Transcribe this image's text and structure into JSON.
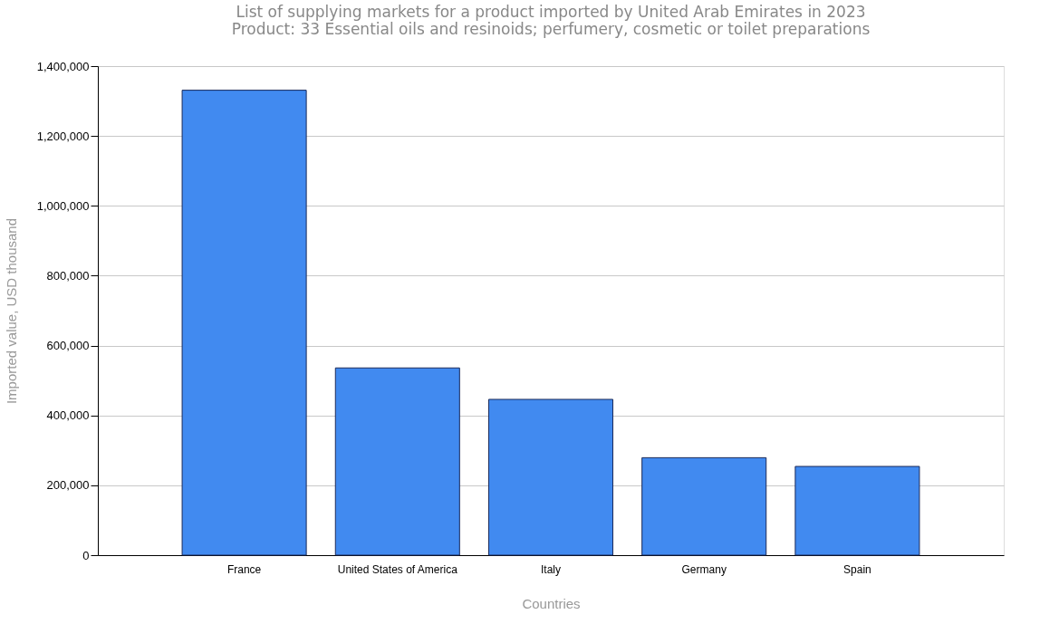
{
  "chart_data": {
    "type": "bar",
    "title": "List of supplying markets for a product imported by United Arab Emirates in 2023",
    "subtitle": "Product: 33 Essential oils and resinoids; perfumery, cosmetic or toilet preparations",
    "xlabel": "Countries",
    "ylabel": "Imported value, USD thousand",
    "categories": [
      "France",
      "United States of America",
      "Italy",
      "Germany",
      "Spain"
    ],
    "values": [
      1331000,
      536000,
      446000,
      279000,
      254000
    ],
    "color": "#418af0",
    "ylim": [
      0,
      1400000
    ],
    "yticks": [
      {
        "value": 0,
        "label": "0"
      },
      {
        "value": 200000,
        "label": "200,000"
      },
      {
        "value": 400000,
        "label": "400,000"
      },
      {
        "value": 600000,
        "label": "600,000"
      },
      {
        "value": 800000,
        "label": "800,000"
      },
      {
        "value": 1000000,
        "label": "1,000,000"
      },
      {
        "value": 1200000,
        "label": "1,200,000"
      },
      {
        "value": 1400000,
        "label": "1,400,000"
      }
    ],
    "grid": "y"
  }
}
